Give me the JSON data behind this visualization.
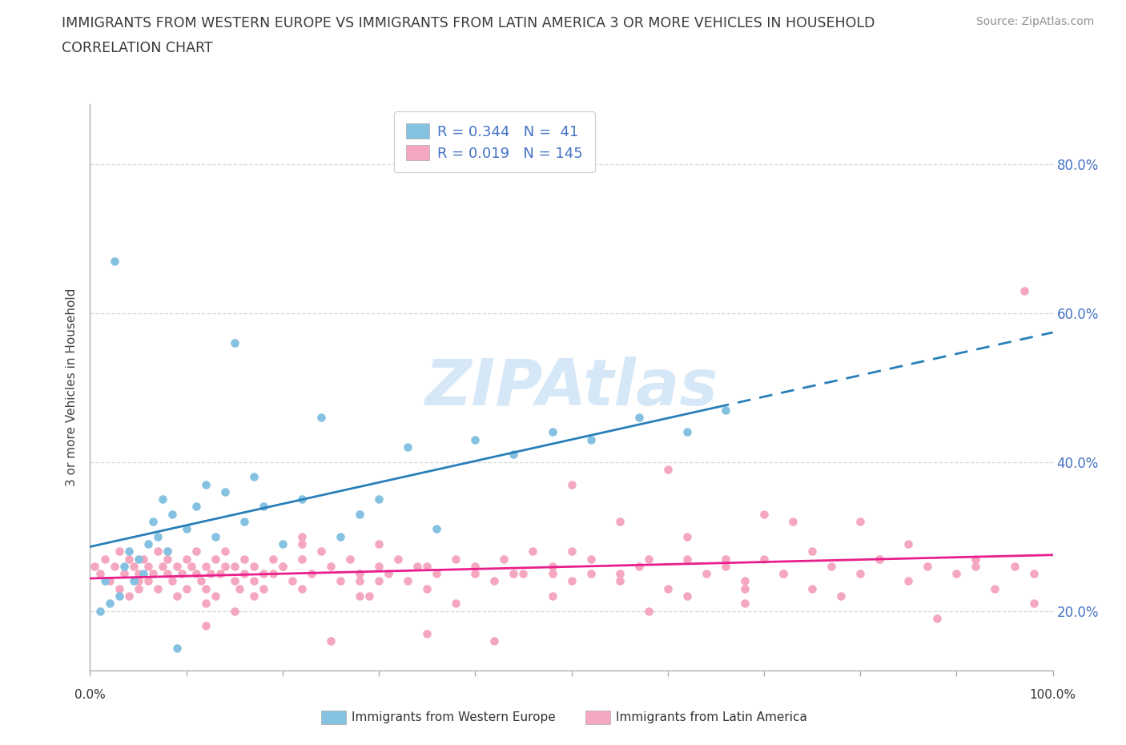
{
  "title_line1": "IMMIGRANTS FROM WESTERN EUROPE VS IMMIGRANTS FROM LATIN AMERICA 3 OR MORE VEHICLES IN HOUSEHOLD",
  "title_line2": "CORRELATION CHART",
  "source": "Source: ZipAtlas.com",
  "ylabel": "3 or more Vehicles in Household",
  "xlim": [
    0.0,
    100.0
  ],
  "ylim": [
    12.0,
    88.0
  ],
  "yticks": [
    20.0,
    40.0,
    60.0,
    80.0
  ],
  "xtick_positions": [
    0,
    10,
    20,
    30,
    40,
    50,
    60,
    70,
    80,
    90,
    100
  ],
  "blue_R": 0.344,
  "blue_N": 41,
  "pink_R": 0.019,
  "pink_N": 145,
  "blue_color": "#85c1e0",
  "pink_color": "#f4a7bf",
  "blue_line_color": "#2980b9",
  "pink_line_color": "#e91e8c",
  "blue_line_solid_end_x": 65.0,
  "legend_label_blue": "R = 0.344   N =  41",
  "legend_label_pink": "R = 0.019   N = 145",
  "watermark": "ZIPAtlas",
  "watermark_color": "#d6e8f7",
  "title_color": "#3a3a3a",
  "axis_label_color": "#4472c4",
  "grid_color": "#d8d8d8",
  "spine_color": "#b0b0b0",
  "source_color": "#909090",
  "background_color": "#ffffff",
  "blue_scatter_x": [
    1.0,
    1.5,
    2.0,
    2.5,
    3.0,
    3.5,
    4.0,
    4.5,
    5.0,
    5.5,
    6.0,
    6.5,
    7.0,
    7.5,
    8.0,
    8.5,
    9.0,
    10.0,
    11.0,
    12.0,
    13.0,
    14.0,
    15.0,
    16.0,
    17.0,
    18.0,
    20.0,
    22.0,
    24.0,
    26.0,
    28.0,
    30.0,
    33.0,
    36.0,
    40.0,
    44.0,
    48.0,
    52.0,
    57.0,
    62.0,
    66.0
  ],
  "blue_scatter_y": [
    20.0,
    24.0,
    21.0,
    67.0,
    22.0,
    26.0,
    28.0,
    24.0,
    27.0,
    25.0,
    29.0,
    32.0,
    30.0,
    35.0,
    28.0,
    33.0,
    15.0,
    31.0,
    34.0,
    37.0,
    30.0,
    36.0,
    56.0,
    32.0,
    38.0,
    34.0,
    29.0,
    35.0,
    46.0,
    30.0,
    33.0,
    35.0,
    42.0,
    31.0,
    43.0,
    41.0,
    44.0,
    43.0,
    46.0,
    44.0,
    47.0
  ],
  "pink_scatter_x": [
    0.5,
    1.0,
    1.5,
    2.0,
    2.5,
    3.0,
    3.0,
    3.5,
    4.0,
    4.0,
    4.5,
    5.0,
    5.0,
    5.5,
    6.0,
    6.0,
    6.5,
    7.0,
    7.0,
    7.5,
    8.0,
    8.0,
    8.5,
    9.0,
    9.0,
    9.5,
    10.0,
    10.0,
    10.5,
    11.0,
    11.0,
    11.5,
    12.0,
    12.0,
    12.5,
    13.0,
    13.0,
    13.5,
    14.0,
    14.0,
    15.0,
    15.0,
    15.5,
    16.0,
    16.0,
    17.0,
    17.0,
    18.0,
    18.0,
    19.0,
    19.0,
    20.0,
    21.0,
    22.0,
    22.0,
    23.0,
    24.0,
    25.0,
    26.0,
    27.0,
    28.0,
    29.0,
    30.0,
    31.0,
    32.0,
    33.0,
    34.0,
    35.0,
    36.0,
    38.0,
    40.0,
    42.0,
    44.0,
    46.0,
    48.0,
    50.0,
    52.0,
    55.0,
    57.0,
    12.0,
    60.0,
    62.0,
    64.0,
    66.0,
    68.0,
    70.0,
    72.0,
    75.0,
    77.0,
    80.0,
    82.0,
    85.0,
    87.0,
    90.0,
    92.0,
    94.0,
    96.0,
    98.0,
    22.0,
    50.0,
    55.0,
    60.0,
    66.0,
    70.0,
    75.0,
    80.0,
    85.0,
    5.0,
    8.0,
    12.0,
    17.0,
    22.0,
    28.0,
    35.0,
    43.0,
    52.0,
    62.0,
    72.0,
    82.0,
    92.0,
    97.0,
    30.0,
    45.0,
    58.0,
    48.0,
    55.0,
    25.0,
    42.0,
    35.0,
    68.0,
    15.0,
    28.0,
    38.0,
    48.0,
    58.0,
    68.0,
    78.0,
    88.0,
    98.0,
    40.0,
    20.0,
    30.0,
    50.0,
    62.0,
    73.0
  ],
  "pink_scatter_y": [
    26.0,
    25.0,
    27.0,
    24.0,
    26.0,
    28.0,
    23.0,
    25.0,
    27.0,
    22.0,
    26.0,
    25.0,
    23.0,
    27.0,
    26.0,
    24.0,
    25.0,
    28.0,
    23.0,
    26.0,
    25.0,
    27.0,
    24.0,
    26.0,
    22.0,
    25.0,
    27.0,
    23.0,
    26.0,
    25.0,
    28.0,
    24.0,
    26.0,
    23.0,
    25.0,
    27.0,
    22.0,
    25.0,
    26.0,
    28.0,
    24.0,
    26.0,
    23.0,
    25.0,
    27.0,
    24.0,
    26.0,
    25.0,
    23.0,
    27.0,
    25.0,
    26.0,
    24.0,
    27.0,
    23.0,
    25.0,
    28.0,
    26.0,
    24.0,
    27.0,
    25.0,
    22.0,
    26.0,
    25.0,
    27.0,
    24.0,
    26.0,
    23.0,
    25.0,
    27.0,
    26.0,
    24.0,
    25.0,
    28.0,
    26.0,
    24.0,
    27.0,
    25.0,
    26.0,
    18.0,
    23.0,
    27.0,
    25.0,
    26.0,
    24.0,
    27.0,
    25.0,
    23.0,
    26.0,
    25.0,
    27.0,
    24.0,
    26.0,
    25.0,
    27.0,
    23.0,
    26.0,
    25.0,
    30.0,
    37.0,
    32.0,
    39.0,
    27.0,
    33.0,
    28.0,
    32.0,
    29.0,
    24.0,
    28.0,
    21.0,
    22.0,
    29.0,
    24.0,
    26.0,
    27.0,
    25.0,
    22.0,
    25.0,
    27.0,
    26.0,
    63.0,
    24.0,
    25.0,
    27.0,
    25.0,
    24.0,
    16.0,
    16.0,
    17.0,
    23.0,
    20.0,
    22.0,
    21.0,
    22.0,
    20.0,
    21.0,
    22.0,
    19.0,
    21.0,
    25.0,
    26.0,
    29.0,
    28.0,
    30.0,
    32.0
  ]
}
